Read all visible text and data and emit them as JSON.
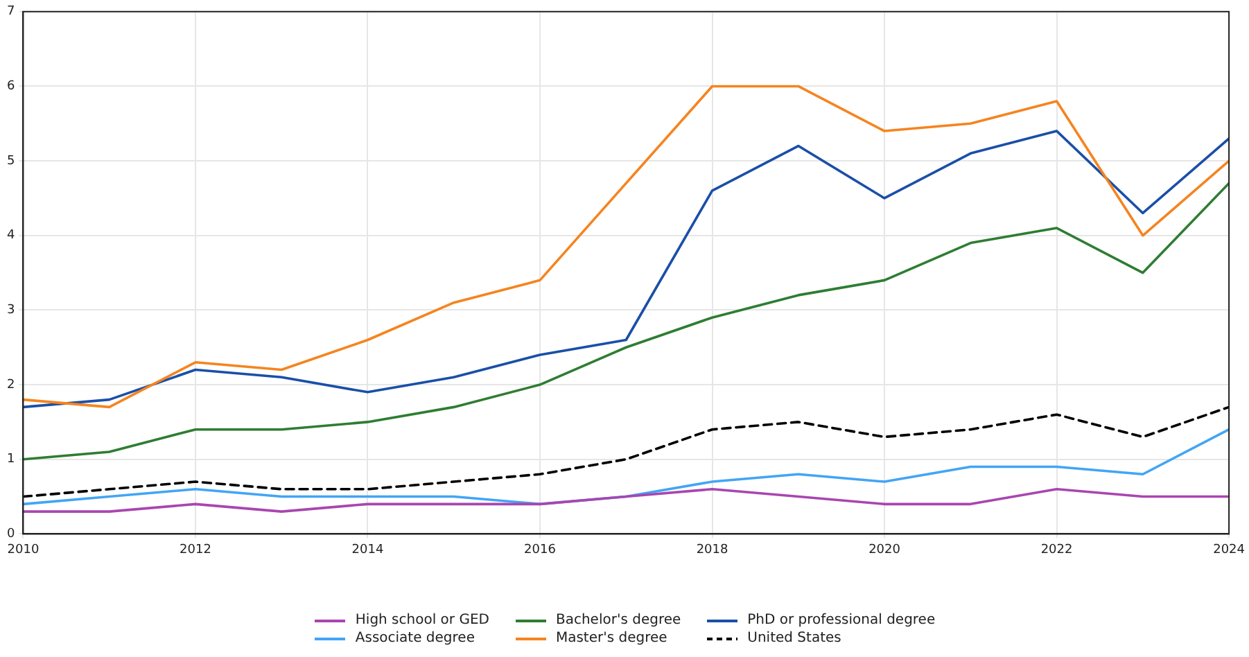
{
  "chart_data": {
    "type": "line",
    "x": [
      2010,
      2011,
      2012,
      2013,
      2014,
      2015,
      2016,
      2017,
      2018,
      2019,
      2020,
      2021,
      2022,
      2023,
      2024
    ],
    "xlim": [
      2010,
      2024
    ],
    "xticks": [
      2010,
      2012,
      2014,
      2016,
      2018,
      2020,
      2022,
      2024
    ],
    "ylim": [
      0,
      7
    ],
    "yticks": [
      0,
      1,
      2,
      3,
      4,
      5,
      6,
      7
    ],
    "grid": true,
    "legend": "bottom",
    "marker": "none",
    "series": [
      {
        "name": "High school or GED",
        "color": "#a846b0",
        "values": [
          0.3,
          0.3,
          0.4,
          0.3,
          0.4,
          0.4,
          0.4,
          0.5,
          0.6,
          0.5,
          0.4,
          0.4,
          0.6,
          0.5,
          0.5
        ]
      },
      {
        "name": "Associate degree",
        "color": "#42a5f5",
        "values": [
          0.4,
          0.5,
          0.6,
          0.5,
          0.5,
          0.5,
          0.4,
          0.5,
          0.7,
          0.8,
          0.7,
          0.9,
          0.9,
          0.8,
          1.4
        ]
      },
      {
        "name": "Bachelor's degree",
        "color": "#2e7d32",
        "values": [
          1.0,
          1.1,
          1.4,
          1.4,
          1.5,
          1.7,
          2.0,
          2.5,
          2.9,
          3.2,
          3.4,
          3.9,
          4.1,
          3.5,
          4.7
        ]
      },
      {
        "name": "Master's degree",
        "color": "#f5841f",
        "values": [
          1.8,
          1.7,
          2.3,
          2.2,
          2.6,
          3.1,
          3.4,
          4.7,
          6.0,
          6.0,
          5.4,
          5.5,
          5.8,
          4.0,
          5.0
        ]
      },
      {
        "name": "PhD or professional degree",
        "color": "#1a4fa8",
        "values": [
          1.7,
          1.8,
          2.2,
          2.1,
          1.9,
          2.1,
          2.4,
          2.6,
          4.6,
          5.2,
          4.5,
          5.1,
          5.4,
          4.3,
          5.3
        ]
      },
      {
        "name": "United States",
        "color": "#000000",
        "line_style": "dashed",
        "values": [
          0.5,
          0.6,
          0.7,
          0.6,
          0.6,
          0.7,
          0.8,
          1.0,
          1.4,
          1.5,
          1.3,
          1.4,
          1.6,
          1.3,
          1.7
        ]
      }
    ]
  }
}
